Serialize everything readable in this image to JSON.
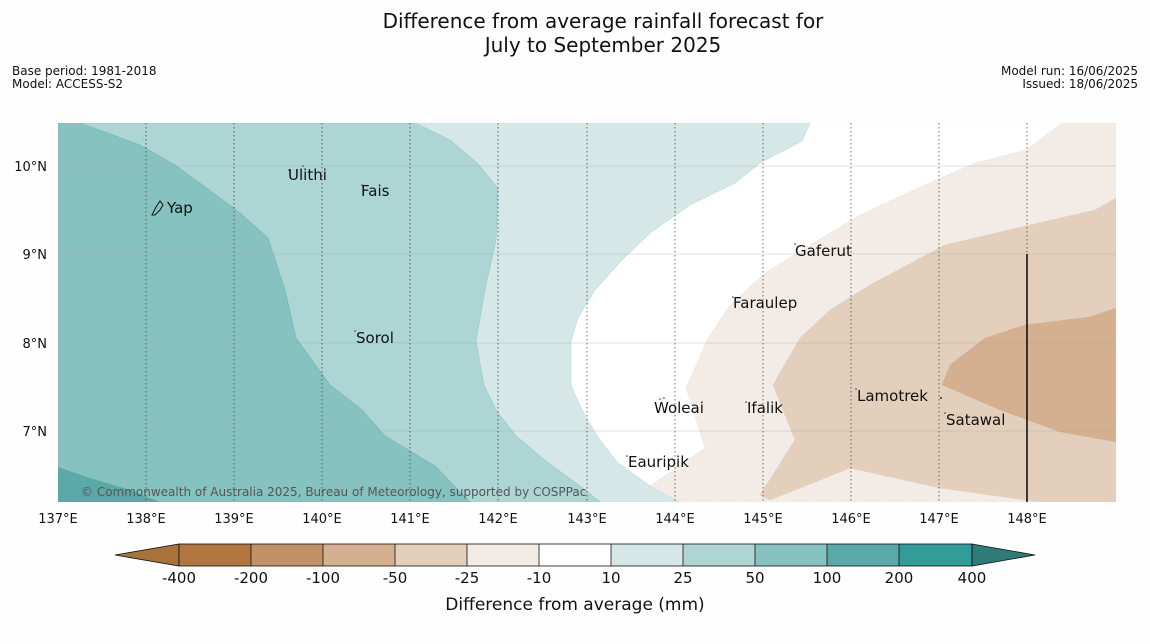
{
  "title_line1": "Difference from average rainfall forecast for",
  "title_line2": "July to September 2025",
  "meta_left": {
    "base_period": "Base period: 1981-2018",
    "model": "Model: ACCESS-S2"
  },
  "meta_right": {
    "model_run": "Model run: 16/06/2025",
    "issued": "Issued: 18/06/2025"
  },
  "map": {
    "lon_ticks": [
      "137°E",
      "138°E",
      "139°E",
      "140°E",
      "141°E",
      "142°E",
      "143°E",
      "144°E",
      "145°E",
      "146°E",
      "147°E",
      "148°E"
    ],
    "lat_ticks": [
      "10°N",
      "9°N",
      "8°N",
      "7°N"
    ],
    "places": [
      "Yap",
      "Ulithi",
      "Fais",
      "Sorol",
      "Gaferut",
      "Faraulep",
      "Woleai",
      "Ifalik",
      "Lamotrek",
      "Satawal",
      "Eauripik"
    ],
    "copyright": "© Commonwealth of Australia 2025, Bureau of Meteorology, supported by COSPPac"
  },
  "colorbar": {
    "title": "Difference from average (mm)",
    "labels": [
      "-400",
      "-200",
      "-100",
      "-50",
      "-25",
      "-10",
      "10",
      "25",
      "50",
      "100",
      "200",
      "400"
    ],
    "colors": [
      "#a8733a",
      "#b07642",
      "#c19168",
      "#d4b091",
      "#e3cfbc",
      "#f3ece6",
      "#ffffff",
      "#d5e8e7",
      "#acd5d4",
      "#86c2c0",
      "#5aa9a8",
      "#339b98",
      "#2e7b78"
    ]
  }
}
